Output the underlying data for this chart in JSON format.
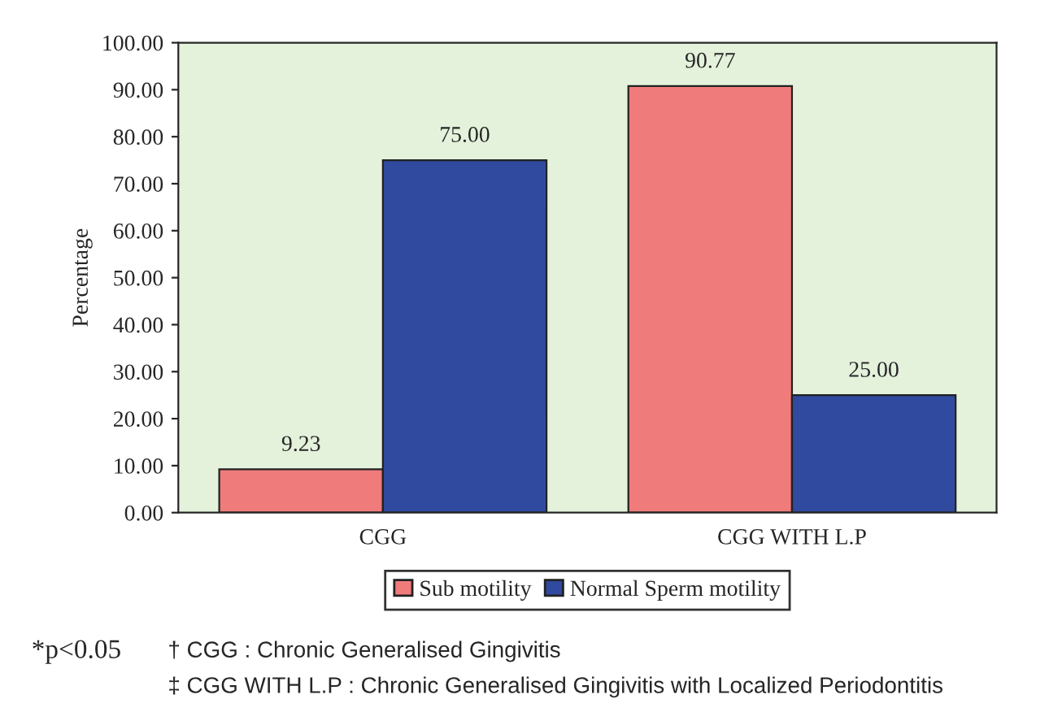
{
  "chart_data": {
    "type": "bar",
    "ylabel": "Percentage",
    "categories": [
      "CGG",
      "CGG WITH L.P"
    ],
    "series": [
      {
        "name": "Sub motility",
        "color": "#f07b7b",
        "values": [
          9.23,
          90.77
        ],
        "value_labels": [
          "9.23",
          "90.77"
        ]
      },
      {
        "name": "Normal Sperm motility",
        "color": "#2f4a9e",
        "values": [
          75,
          25
        ],
        "value_labels": [
          "75.00",
          "25.00"
        ]
      }
    ],
    "ylim": [
      0,
      100
    ],
    "yticks": [
      {
        "value": 0,
        "label": "0.00"
      },
      {
        "value": 10,
        "label": "10.00"
      },
      {
        "value": 20,
        "label": "20.00"
      },
      {
        "value": 30,
        "label": "30.00"
      },
      {
        "value": 40,
        "label": "40.00"
      },
      {
        "value": 50,
        "label": "50.00"
      },
      {
        "value": 60,
        "label": "60.00"
      },
      {
        "value": 70,
        "label": "70.00"
      },
      {
        "value": 80,
        "label": "80.00"
      },
      {
        "value": 90,
        "label": "90.00"
      },
      {
        "value": 100,
        "label": "100.00"
      }
    ],
    "grid": false,
    "legend": "bottom",
    "annotations": [
      "*p<0.05",
      "† CGG : Chronic Generalised Gingivitis",
      "‡ CGG WITH L.P : Chronic Generalised Gingivitis with Localized Periodontitis"
    ]
  }
}
